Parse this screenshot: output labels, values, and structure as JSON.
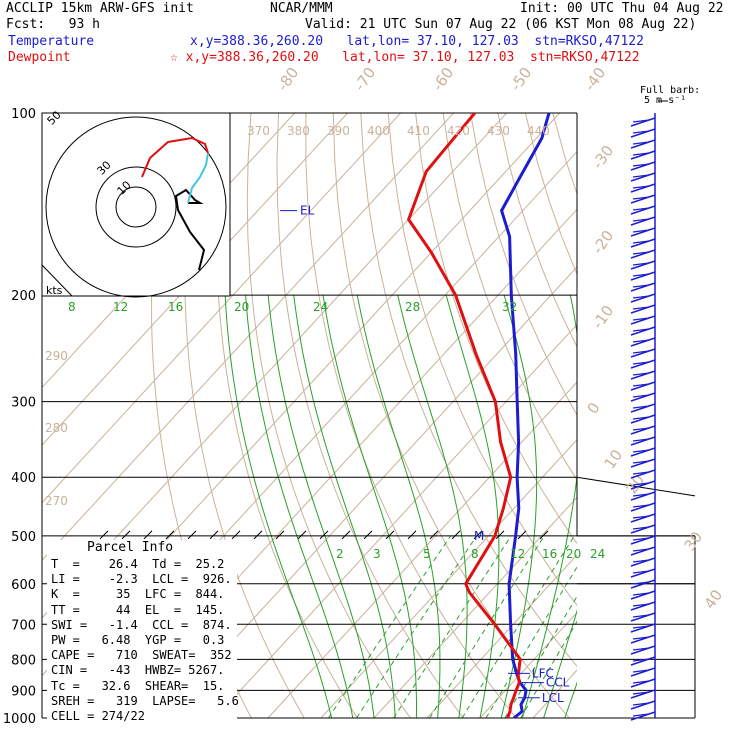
{
  "header": {
    "model": "ACCLIP 15km ARW-GFS init",
    "org": "NCAR/MMM",
    "init": "Init: 00 UTC Thu 04 Aug 22",
    "fcst": "Fcst:   93 h",
    "valid": "Valid: 21 UTC Sun 07 Aug 22 (06 KST Mon 08 Aug 22)",
    "temp_label": "Temperature",
    "temp_info": "x,y=388.36,260.20   lat,lon= 37.10, 127.03  stn=RKSO,47122",
    "dew_label": "Dewpoint",
    "dew_info": "☆ x,y=388.36,260.20   lat,lon= 37.10, 127.03  stn=RKSO,47122",
    "barb_title": "Full barb:",
    "barb_unit": "5 m s⁻¹"
  },
  "chart_data": {
    "type": "line",
    "title": "",
    "xlabel": "",
    "ylabel": "",
    "pressure_ticks": [
      "100",
      "200",
      "300",
      "400",
      "500",
      "600",
      "700",
      "800",
      "900",
      "1000"
    ],
    "pressure_values": [
      100,
      200,
      300,
      400,
      500,
      600,
      700,
      800,
      900,
      1000
    ],
    "temperature_tick_labels": [
      "-80",
      "-70",
      "-60",
      "-50",
      "-40",
      "-30",
      "-20",
      "-10",
      "0",
      "10",
      "20",
      "30",
      "40"
    ],
    "theta_labels": [
      "370",
      "380",
      "390",
      "400",
      "410",
      "420",
      "430",
      "440"
    ],
    "theta_labels_left": [
      "290",
      "280",
      "270"
    ],
    "mixing_ratio_labels_upper": [
      "8",
      "12",
      "16",
      "20",
      "24",
      "28",
      "32"
    ],
    "mixing_ratio_labels_lower": [
      "2",
      "3",
      "5",
      "8",
      "12",
      "16",
      "20",
      "24"
    ],
    "series": [
      {
        "name": "Temperature",
        "color": "#1c1cd0",
        "pressure": [
          1000,
          975,
          950,
          925,
          900,
          875,
          850,
          800,
          700,
          600,
          500,
          450,
          400,
          350,
          300,
          250,
          200,
          160,
          145,
          130,
          110,
          100
        ],
        "x_temp": [
          26.4,
          26.8,
          25.4,
          24.9,
          23.9,
          21.5,
          19.6,
          16.0,
          9.5,
          2.2,
          -4.9,
          -9.1,
          -14.8,
          -20.6,
          -27.9,
          -36.5,
          -47.5,
          -58.0,
          -64.0,
          -66.0,
          -69.0,
          -72.0
        ]
      },
      {
        "name": "Dewpoint",
        "color": "#e01010",
        "pressure": [
          1000,
          975,
          950,
          925,
          900,
          875,
          850,
          800,
          700,
          620,
          600,
          500,
          450,
          400,
          350,
          300,
          250,
          200,
          170,
          150,
          125,
          100
        ],
        "x_temp": [
          25.2,
          24.5,
          23.5,
          22.8,
          22.0,
          21.3,
          19.8,
          17.4,
          6.5,
          -3.8,
          -6.0,
          -8.8,
          -12.0,
          -16.0,
          -24.0,
          -32.0,
          -44.0,
          -58.0,
          -70.0,
          -80.0,
          -85.0,
          -86.0
        ]
      }
    ],
    "levels": {
      "lfc": "LFC",
      "ccl": "CCL",
      "lcl": "LCL",
      "el": "EL",
      "m": "M"
    },
    "hodograph": {
      "ring_labels": [
        "10",
        "30",
        "50"
      ],
      "unit": "kts"
    }
  },
  "parcel_info": {
    "title": "Parcel Info",
    "rows": [
      "T  =    26.4  Td =  25.2",
      "LI =    -2.3  LCL =  926.",
      "K  =     35  LFC =  844.",
      "TT =     44  EL  =  145.",
      "SWI =   -1.4  CCL =  874.",
      "PW =   6.48  YGP =   0.3",
      "CAPE =   710  SWEAT=  352",
      "CIN =   -43  HWBZ= 5267.",
      "Tc =   32.6  SHEAR=  15.",
      "SREH =   319  LAPSE=   5.6",
      "CELL = 274/22"
    ]
  }
}
